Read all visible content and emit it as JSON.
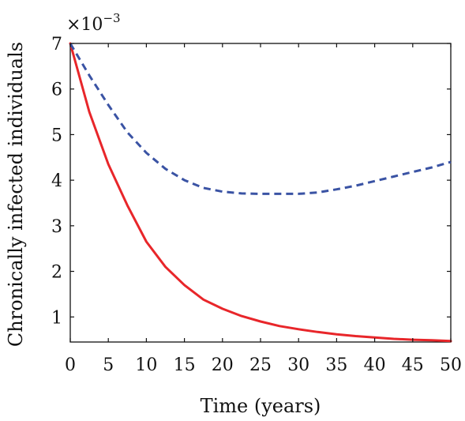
{
  "chart_data": {
    "type": "line",
    "title": "",
    "xlabel": "Time (years)",
    "ylabel": "Chronically infected individuals",
    "y_multiplier_label": "×10",
    "y_multiplier_exponent": "−3",
    "xlim": [
      0,
      50
    ],
    "ylim": [
      0.45,
      7
    ],
    "xticks": [
      0,
      5,
      10,
      15,
      20,
      25,
      30,
      35,
      40,
      45,
      50
    ],
    "yticks": [
      1,
      2,
      3,
      4,
      5,
      6,
      7
    ],
    "grid": false,
    "x": [
      0,
      2.5,
      5,
      7.5,
      10,
      12.5,
      15,
      17.5,
      20,
      22.5,
      25,
      27.5,
      30,
      32.5,
      35,
      37.5,
      40,
      42.5,
      45,
      47.5,
      50
    ],
    "series": [
      {
        "color": "#e8262a",
        "style": "solid",
        "values": [
          7.0,
          5.5,
          4.35,
          3.45,
          2.65,
          2.1,
          1.7,
          1.38,
          1.18,
          1.02,
          0.9,
          0.8,
          0.73,
          0.67,
          0.62,
          0.58,
          0.55,
          0.52,
          0.5,
          0.49,
          0.47
        ]
      },
      {
        "color": "#3a53a4",
        "style": "dashed",
        "values": [
          7.0,
          6.3,
          5.65,
          5.05,
          4.6,
          4.25,
          4.0,
          3.83,
          3.75,
          3.71,
          3.7,
          3.7,
          3.7,
          3.73,
          3.8,
          3.88,
          3.98,
          4.08,
          4.18,
          4.28,
          4.4
        ]
      }
    ]
  }
}
